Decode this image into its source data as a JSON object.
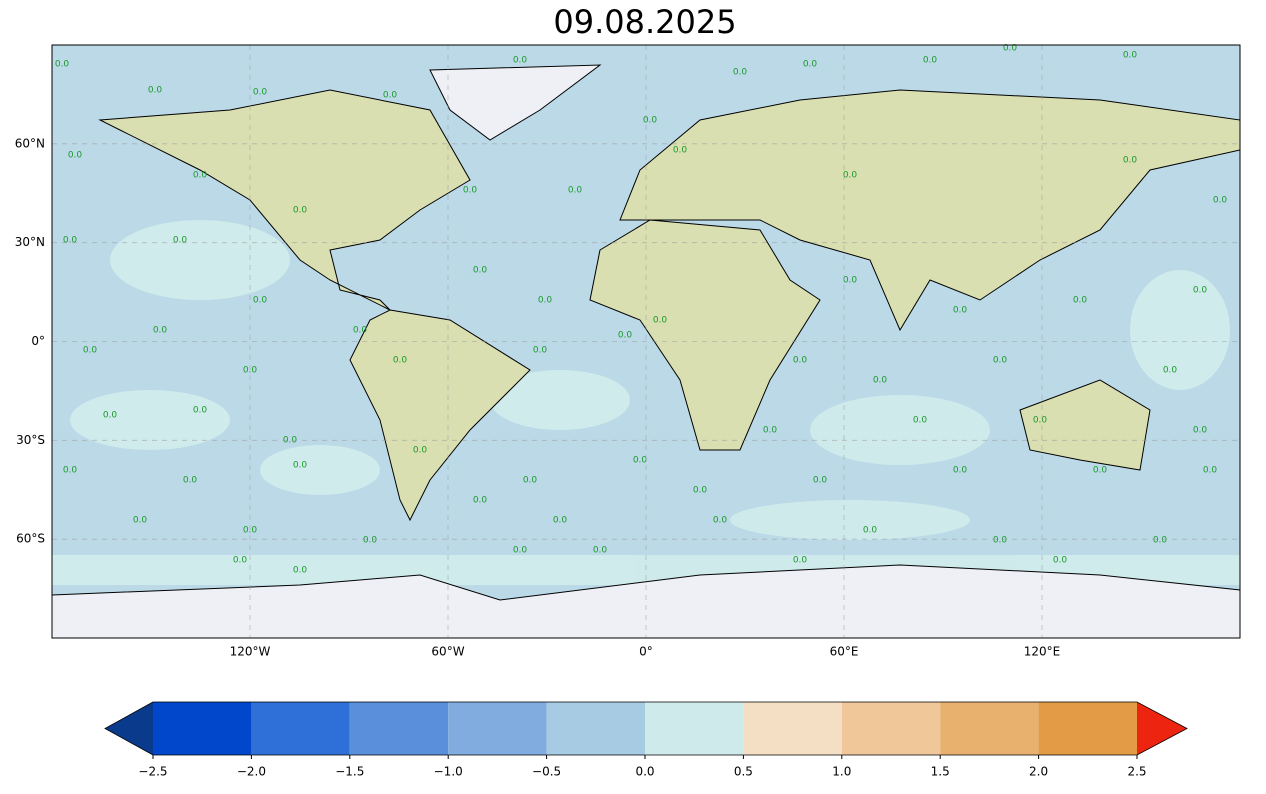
{
  "title": "09.08.2025",
  "map": {
    "xlim": [
      -180,
      180
    ],
    "ylim": [
      -90,
      90
    ],
    "grid": true,
    "xticks": [
      {
        "value": -120,
        "label": "120°W"
      },
      {
        "value": -60,
        "label": "60°W"
      },
      {
        "value": 0,
        "label": "0°"
      },
      {
        "value": 60,
        "label": "60°E"
      },
      {
        "value": 120,
        "label": "120°E"
      }
    ],
    "yticks": [
      {
        "value": 60,
        "label": "60°N"
      },
      {
        "value": 30,
        "label": "30°N"
      },
      {
        "value": 0,
        "label": "0°"
      },
      {
        "value": -30,
        "label": "30°S"
      },
      {
        "value": -60,
        "label": "60°S"
      }
    ],
    "contour_label": "0.0"
  },
  "colorbar": {
    "lim": [
      -2.5,
      2.5
    ],
    "ticks": [
      {
        "value": -2.5,
        "label": "−2.5"
      },
      {
        "value": -2,
        "label": "−2.0"
      },
      {
        "value": -1.5,
        "label": "−1.5"
      },
      {
        "value": -1,
        "label": "−1.0"
      },
      {
        "value": -0.5,
        "label": "−0.5"
      },
      {
        "value": 0,
        "label": "0.0"
      },
      0.5,
      {
        "value": 1,
        "label": "1.0"
      },
      1.5,
      {
        "value": 2,
        "label": "2.0"
      },
      2.5
    ],
    "colors": [
      "#0047cc",
      "#2f6fd8",
      "#5a8fdc",
      "#80acdf",
      "#a6cbe3",
      "#cfeaea",
      "#f4dfc4",
      "#f0c799",
      "#e8b16e",
      "#e49b45"
    ],
    "under_color": "#0a3a8c",
    "over_color": "#ec2410"
  }
}
